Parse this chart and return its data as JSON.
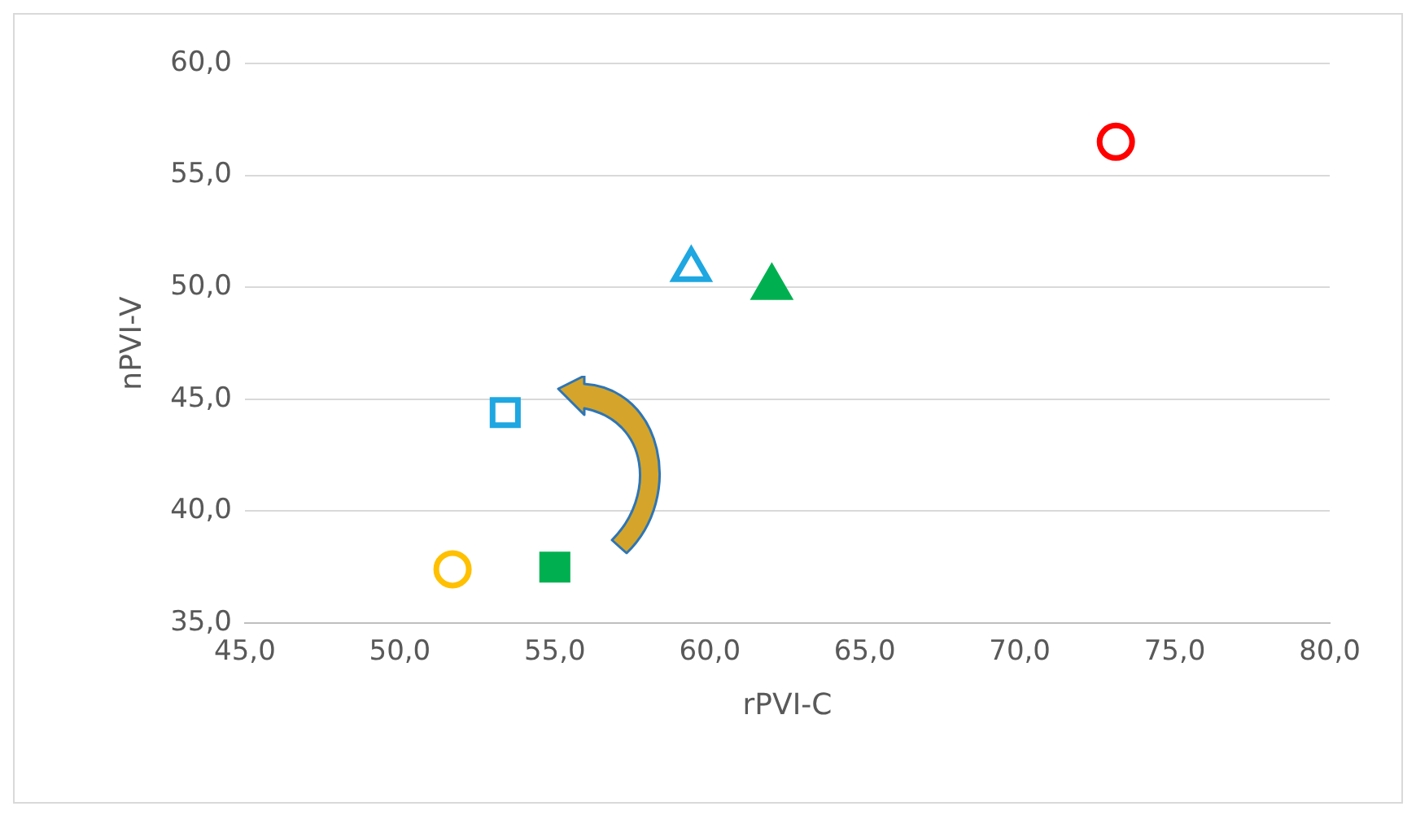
{
  "chart_data": {
    "type": "scatter",
    "xlabel": "rPVI-C",
    "ylabel": "nPVI-V",
    "xlim": [
      45,
      80
    ],
    "ylim": [
      35,
      60
    ],
    "xticks": [
      {
        "value": 45,
        "label": "45,0"
      },
      {
        "value": 50,
        "label": "50,0"
      },
      {
        "value": 55,
        "label": "55,0"
      },
      {
        "value": 60,
        "label": "60,0"
      },
      {
        "value": 65,
        "label": "65,0"
      },
      {
        "value": 70,
        "label": "70,0"
      },
      {
        "value": 75,
        "label": "75,0"
      },
      {
        "value": 80,
        "label": "80,0"
      }
    ],
    "yticks": [
      {
        "value": 35,
        "label": "35,0"
      },
      {
        "value": 40,
        "label": "40,0"
      },
      {
        "value": 45,
        "label": "45,0"
      },
      {
        "value": 50,
        "label": "50,0"
      },
      {
        "value": 55,
        "label": "55,0"
      },
      {
        "value": 60,
        "label": "60,0"
      }
    ],
    "grid": "y",
    "legend": false,
    "series": [
      {
        "x": [
          73.1
        ],
        "values": [
          56.5
        ],
        "color": "#ff0000",
        "colors": [
          "#ffffff"
        ],
        "marker": "circle"
      },
      {
        "x": [
          59.4
        ],
        "values": [
          50.8
        ],
        "color": "#1ea7e1",
        "colors": [
          "#ffffff"
        ],
        "marker": "triangle"
      },
      {
        "x": [
          62.0
        ],
        "values": [
          50.0
        ],
        "color": "#00b050",
        "colors": [
          "#00b050"
        ],
        "marker": "triangle"
      },
      {
        "x": [
          53.4
        ],
        "values": [
          44.4
        ],
        "color": "#1ea7e1",
        "colors": [
          "#ffffff"
        ],
        "marker": "square"
      },
      {
        "x": [
          51.7
        ],
        "values": [
          37.4
        ],
        "color": "#ffc000",
        "colors": [
          "#ffffff"
        ],
        "marker": "circle"
      },
      {
        "x": [
          55.0
        ],
        "values": [
          37.5
        ],
        "color": "#00b050",
        "colors": [
          "#00b050"
        ],
        "marker": "square"
      }
    ]
  }
}
